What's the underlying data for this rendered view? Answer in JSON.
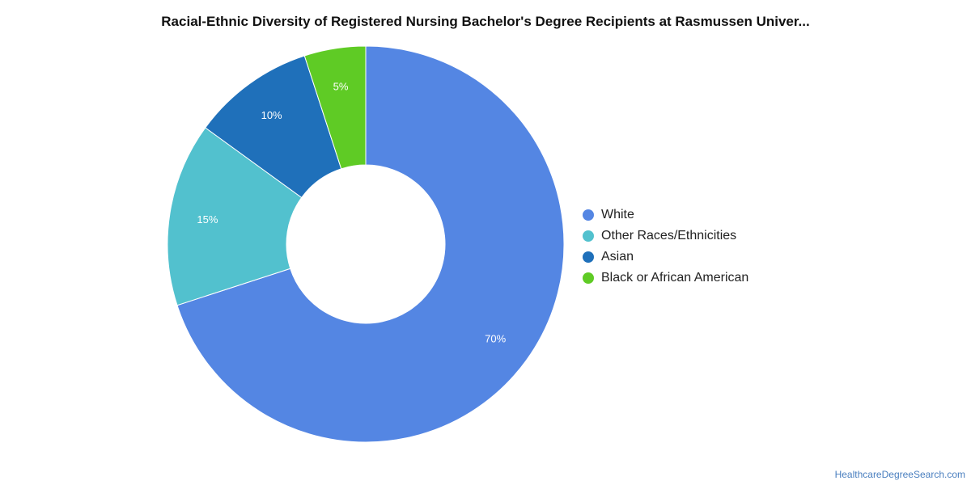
{
  "chart_data": {
    "type": "pie",
    "title": "Racial-Ethnic Diversity of Registered Nursing Bachelor's Degree Recipients at Rasmussen Univer...",
    "donut": true,
    "legend_position": "right",
    "slices": [
      {
        "label": "White",
        "value": 70,
        "data_label": "70%",
        "color": "#5486E3"
      },
      {
        "label": "Other Races/Ethnicities",
        "value": 15,
        "data_label": "15%",
        "color": "#52C1CE"
      },
      {
        "label": "Asian",
        "value": 10,
        "data_label": "10%",
        "color": "#1F70BA"
      },
      {
        "label": "Black or African American",
        "value": 5,
        "data_label": "5%",
        "color": "#5FCB25"
      }
    ]
  },
  "watermark": "HealthcareDegreeSearch.com"
}
